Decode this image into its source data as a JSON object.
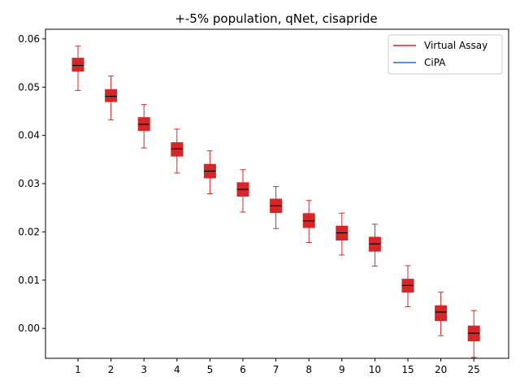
{
  "chart_data": {
    "type": "box",
    "title": "+-5% population, qNet, cisapride",
    "xlabel": "",
    "ylabel": "",
    "categories": [
      "1",
      "2",
      "3",
      "4",
      "5",
      "6",
      "7",
      "8",
      "9",
      "10",
      "15",
      "20",
      "25"
    ],
    "ylim": [
      -0.0062,
      0.062
    ],
    "yticks": [
      "0.00",
      "0.01",
      "0.02",
      "0.03",
      "0.04",
      "0.05",
      "0.06"
    ],
    "grid": false,
    "legend": {
      "placement": "top-right"
    },
    "series": [
      {
        "name": "Virtual Assay",
        "color": "#d62728",
        "median_color": "#000000",
        "boxes": [
          {
            "whisker_low": 0.0493,
            "q1": 0.0533,
            "median": 0.0545,
            "q3": 0.056,
            "whisker_high": 0.0585
          },
          {
            "whisker_low": 0.0432,
            "q1": 0.047,
            "median": 0.0481,
            "q3": 0.0495,
            "whisker_high": 0.0523
          },
          {
            "whisker_low": 0.0374,
            "q1": 0.041,
            "median": 0.0423,
            "q3": 0.0437,
            "whisker_high": 0.0464
          },
          {
            "whisker_low": 0.0322,
            "q1": 0.0357,
            "median": 0.0372,
            "q3": 0.0385,
            "whisker_high": 0.0413
          },
          {
            "whisker_low": 0.0279,
            "q1": 0.0312,
            "median": 0.0326,
            "q3": 0.034,
            "whisker_high": 0.0368
          },
          {
            "whisker_low": 0.0241,
            "q1": 0.0274,
            "median": 0.0288,
            "q3": 0.0302,
            "whisker_high": 0.0329
          },
          {
            "whisker_low": 0.0207,
            "q1": 0.024,
            "median": 0.0254,
            "q3": 0.0268,
            "whisker_high": 0.0294
          },
          {
            "whisker_low": 0.0178,
            "q1": 0.0209,
            "median": 0.0223,
            "q3": 0.0238,
            "whisker_high": 0.0265
          },
          {
            "whisker_low": 0.0152,
            "q1": 0.0183,
            "median": 0.0198,
            "q3": 0.0212,
            "whisker_high": 0.0239
          },
          {
            "whisker_low": 0.0129,
            "q1": 0.016,
            "median": 0.0175,
            "q3": 0.0189,
            "whisker_high": 0.0216
          },
          {
            "whisker_low": 0.0045,
            "q1": 0.0075,
            "median": 0.0089,
            "q3": 0.0102,
            "whisker_high": 0.013
          },
          {
            "whisker_low": -0.0015,
            "q1": 0.0016,
            "median": 0.0034,
            "q3": 0.0047,
            "whisker_high": 0.0075
          },
          {
            "whisker_low": -0.006,
            "q1": -0.0026,
            "median": -0.001,
            "q3": 0.0005,
            "whisker_high": 0.0037
          }
        ]
      },
      {
        "name": "CiPA",
        "color": "#1f77b4",
        "boxes": []
      }
    ]
  }
}
